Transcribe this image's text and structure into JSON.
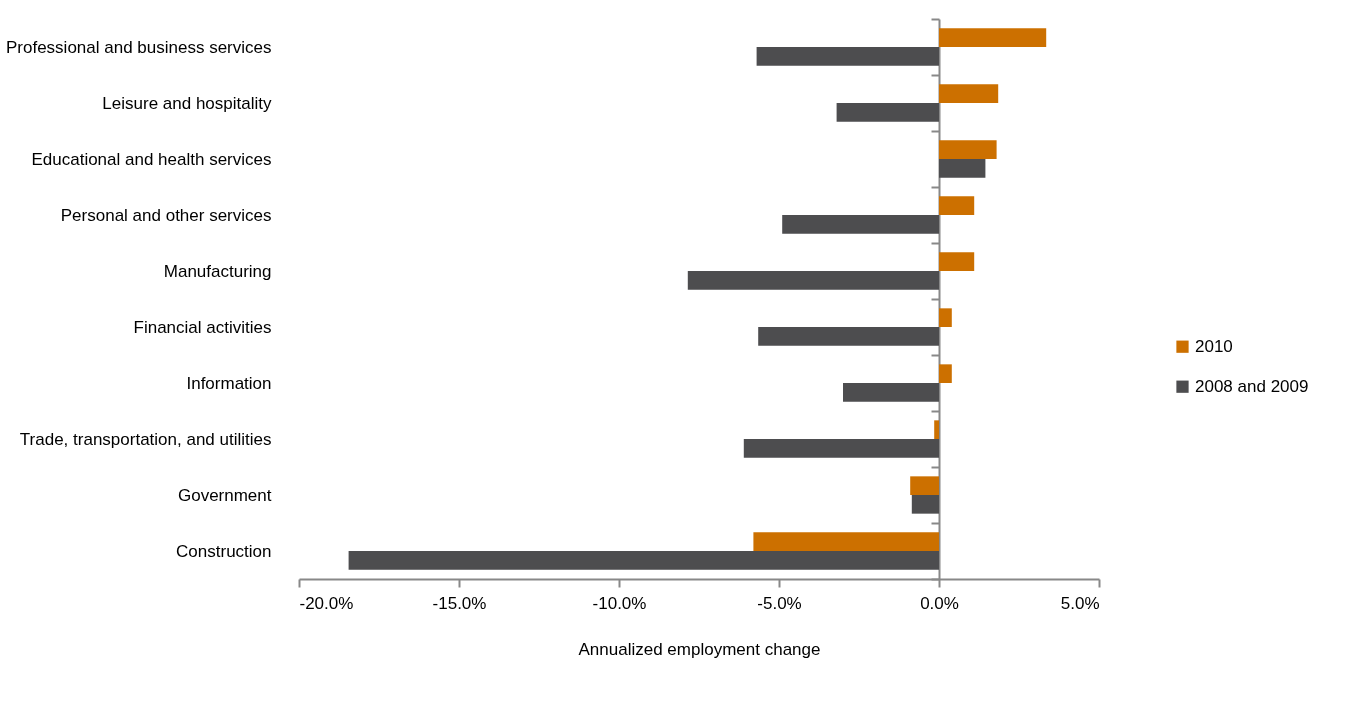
{
  "chart_data": {
    "type": "bar",
    "orientation": "horizontal",
    "xlabel": "Annualized employment change",
    "categories": [
      "Professional and business services",
      "Leisure and hospitality",
      "Educational and health services",
      "Personal and other services",
      "Manufacturing",
      "Financial activities",
      "Information",
      "Trade, transportation, and utilities",
      "Government",
      "Construction"
    ],
    "series": [
      {
        "name": "2010",
        "color": "#cc7000",
        "values": [
          3.35,
          1.85,
          1.8,
          1.1,
          1.1,
          0.4,
          0.4,
          -0.15,
          -0.9,
          -5.8
        ]
      },
      {
        "name": "2008 and 2009",
        "color": "#4d4d4f",
        "values": [
          -5.7,
          -3.2,
          1.45,
          -4.9,
          -7.85,
          -5.65,
          -3.0,
          -6.1,
          -0.85,
          -18.45
        ]
      }
    ],
    "xlim": [
      -20,
      5
    ],
    "xticks": [
      {
        "value": -20,
        "label": "-20.0%"
      },
      {
        "value": -15,
        "label": "-15.0%"
      },
      {
        "value": -10,
        "label": "-10.0%"
      },
      {
        "value": -5,
        "label": "-5.0%"
      },
      {
        "value": 0,
        "label": "0.0%"
      },
      {
        "value": 5,
        "label": "5.0%"
      }
    ],
    "legend": "right"
  }
}
